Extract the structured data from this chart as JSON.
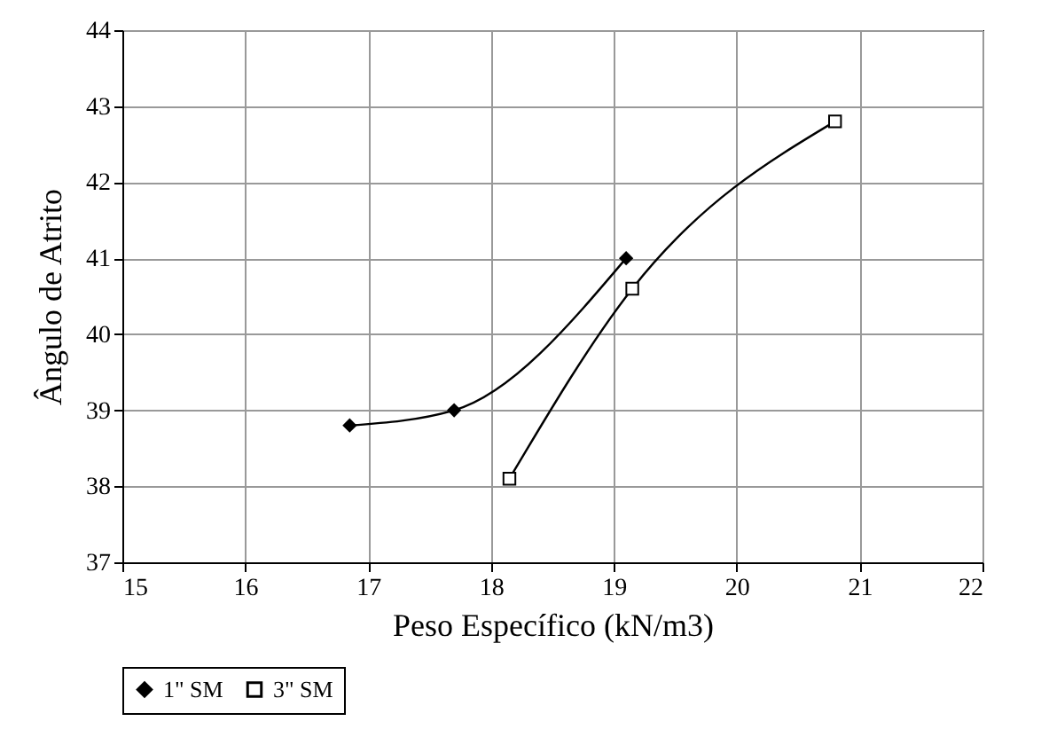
{
  "chart_data": {
    "type": "line",
    "xlabel": "Peso Específico (kN/m3)",
    "ylabel": "Ângulo de Atrito",
    "xlim": [
      15,
      22
    ],
    "xticks": [
      15,
      16,
      17,
      18,
      19,
      20,
      21,
      22
    ],
    "ylim": [
      37,
      44
    ],
    "yticks": [
      37,
      38,
      39,
      40,
      41,
      42,
      43,
      44
    ],
    "grid": true,
    "legend": "bottom",
    "series": [
      {
        "name": "1\" SM",
        "color": "#000000",
        "marker": "diamond",
        "x": [
          16.85,
          17.7,
          19.1
        ],
        "values": [
          38.8,
          39.0,
          41.0
        ]
      },
      {
        "name": "3\" SM",
        "color": "#000000",
        "marker": "square",
        "x": [
          18.15,
          19.15,
          20.8
        ],
        "values": [
          38.1,
          40.6,
          42.8
        ]
      }
    ]
  }
}
